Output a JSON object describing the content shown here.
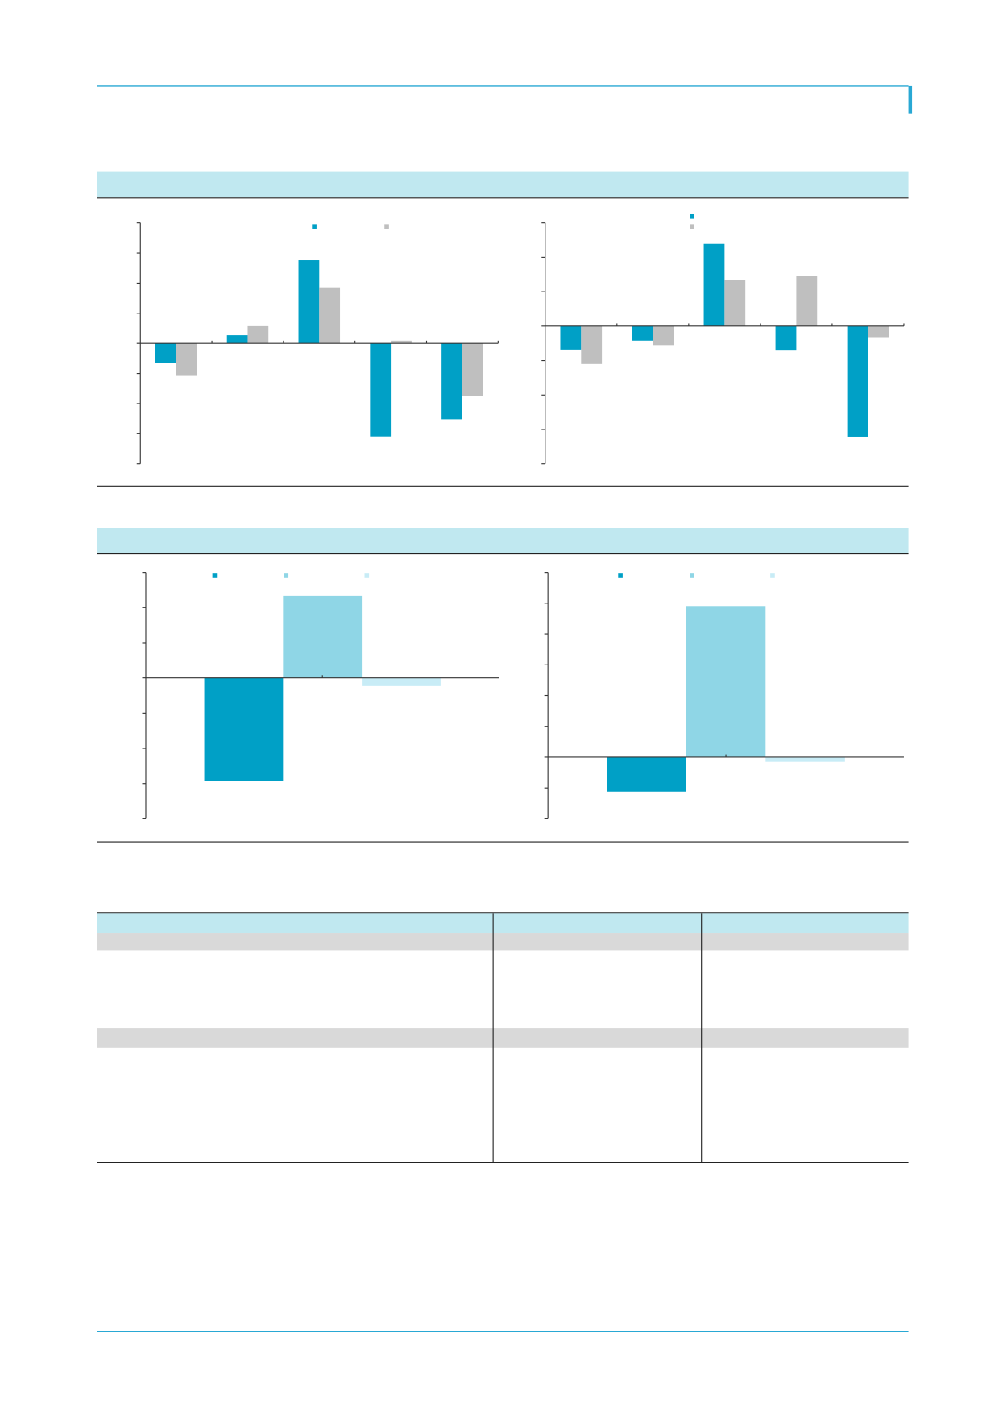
{
  "chart_data": [
    {
      "type": "bar",
      "categories": [
        null,
        null,
        null,
        null,
        null
      ],
      "ylim": [
        -4,
        4
      ],
      "yticks": [
        -4,
        -3,
        -2,
        -1,
        0,
        1,
        2,
        3,
        4
      ],
      "series": [
        {
          "color": "#00a0c6",
          "values": [
            -0.66,
            0.27,
            2.76,
            -3.09,
            -2.52
          ]
        },
        {
          "color": "#bfbfbf",
          "values": [
            -1.08,
            0.57,
            1.86,
            0.09,
            -1.74
          ]
        }
      ],
      "legend": "top"
    },
    {
      "type": "bar",
      "categories": [
        null,
        null,
        null,
        null,
        null
      ],
      "ylim": [
        -4,
        3
      ],
      "yticks": [
        -4,
        -3,
        -2,
        -1,
        0,
        1,
        2,
        3
      ],
      "series": [
        {
          "color": "#00a0c6",
          "values": [
            -0.68,
            -0.42,
            2.39,
            -0.71,
            -3.21
          ]
        },
        {
          "color": "#bfbfbf",
          "values": [
            -1.1,
            -0.55,
            1.34,
            1.45,
            -0.32
          ]
        }
      ],
      "legend": "top"
    },
    {
      "type": "bar",
      "categories": [
        null
      ],
      "ylim": [
        -4,
        3
      ],
      "yticks": [
        -4,
        -3,
        -2,
        -1,
        0,
        1,
        2,
        3
      ],
      "series": [
        {
          "color": "#00a0c6",
          "values": [
            -2.92
          ]
        },
        {
          "color": "#8fd6e6",
          "values": [
            2.33
          ]
        },
        {
          "color": "#c8ecf6",
          "values": [
            -0.21
          ]
        }
      ],
      "legend": "top"
    },
    {
      "type": "bar",
      "categories": [
        null
      ],
      "ylim": [
        -2,
        6
      ],
      "yticks": [
        -2,
        -1,
        0,
        1,
        2,
        3,
        4,
        5,
        6
      ],
      "series": [
        {
          "color": "#00a0c6",
          "values": [
            -1.12
          ]
        },
        {
          "color": "#8fd6e6",
          "values": [
            4.91
          ]
        },
        {
          "color": "#c8ecf6",
          "values": [
            -0.15
          ]
        }
      ],
      "legend": "top"
    }
  ]
}
